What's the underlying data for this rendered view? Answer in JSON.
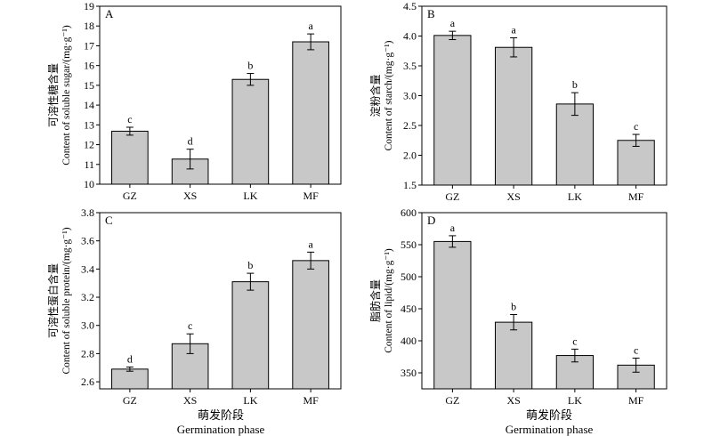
{
  "bottom_label_left": {
    "cn": "萌发阶段",
    "en": "Germination phase"
  },
  "bottom_label_right": {
    "cn": "萌发阶段",
    "en": "Germination phase"
  },
  "chart_data": [
    {
      "panel": "A",
      "type": "bar",
      "categories": [
        "GZ",
        "XS",
        "LK",
        "MF"
      ],
      "values": [
        12.68,
        11.27,
        15.3,
        17.2
      ],
      "errors": [
        0.2,
        0.5,
        0.3,
        0.4
      ],
      "letters": [
        "c",
        "d",
        "b",
        "a"
      ],
      "ylabel_cn": "可溶性糖含量",
      "ylabel_en": "Content of soluble sugar/(mg·g⁻¹)",
      "ylim": [
        10,
        19
      ],
      "yticks": [
        10,
        11,
        12,
        13,
        14,
        15,
        16,
        17,
        18,
        19
      ],
      "tick_decimals": 0,
      "bar_color": "#c8c8c8"
    },
    {
      "panel": "B",
      "type": "bar",
      "categories": [
        "GZ",
        "XS",
        "LK",
        "MF"
      ],
      "values": [
        4.01,
        3.81,
        2.86,
        2.25
      ],
      "errors": [
        0.07,
        0.16,
        0.19,
        0.1
      ],
      "letters": [
        "a",
        "a",
        "b",
        "c"
      ],
      "ylabel_cn": "淀粉含量",
      "ylabel_en": "Content of starch/(mg·g⁻¹)",
      "ylim": [
        1.5,
        4.5
      ],
      "yticks": [
        1.5,
        2.0,
        2.5,
        3.0,
        3.5,
        4.0,
        4.5
      ],
      "tick_decimals": 1,
      "bar_color": "#c8c8c8"
    },
    {
      "panel": "C",
      "type": "bar",
      "categories": [
        "GZ",
        "XS",
        "LK",
        "MF"
      ],
      "values": [
        2.69,
        2.87,
        3.31,
        3.46
      ],
      "errors": [
        0.015,
        0.07,
        0.06,
        0.06
      ],
      "letters": [
        "d",
        "c",
        "b",
        "a"
      ],
      "ylabel_cn": "可溶性蛋白含量",
      "ylabel_en": "Content of soluble protein/(mg·g⁻¹)",
      "ylim": [
        2.55,
        3.8
      ],
      "yticks": [
        2.6,
        2.8,
        3.0,
        3.2,
        3.4,
        3.6,
        3.8
      ],
      "tick_decimals": 1,
      "bar_color": "#c8c8c8"
    },
    {
      "panel": "D",
      "type": "bar",
      "categories": [
        "GZ",
        "XS",
        "LK",
        "MF"
      ],
      "values": [
        555,
        429,
        377,
        362
      ],
      "errors": [
        9,
        12,
        10,
        11
      ],
      "letters": [
        "a",
        "b",
        "c",
        "c"
      ],
      "ylabel_cn": "脂肪含量",
      "ylabel_en": "Content of lipid/(mg·g⁻¹)",
      "ylim": [
        325,
        600
      ],
      "yticks": [
        350,
        400,
        450,
        500,
        550,
        600
      ],
      "tick_decimals": 0,
      "bar_color": "#c8c8c8"
    }
  ]
}
